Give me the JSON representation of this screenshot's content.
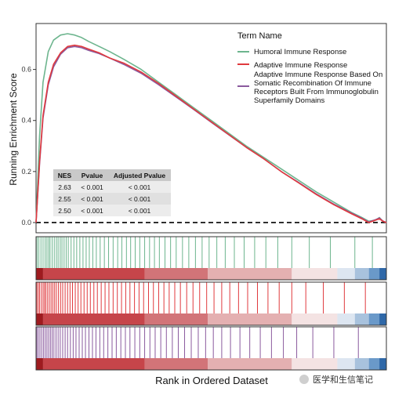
{
  "chart_data": {
    "type": "line",
    "ylabel": "Running Enrichment Score",
    "xlabel": "Rank in Ordered Dataset",
    "ylim": [
      -0.04,
      0.78
    ],
    "yticks": [
      "0.0",
      "0.2",
      "0.4",
      "0.6"
    ],
    "ytick_values": [
      0.0,
      0.2,
      0.4,
      0.6
    ],
    "legend_title": "Term Name",
    "legend_position": "top-right",
    "series": [
      {
        "name": "Humoral Immune Response",
        "color": "#6db58e",
        "x": [
          0,
          0.01,
          0.02,
          0.035,
          0.05,
          0.07,
          0.09,
          0.11,
          0.13,
          0.15,
          0.18,
          0.21,
          0.25,
          0.3,
          0.35,
          0.4,
          0.45,
          0.5,
          0.55,
          0.6,
          0.65,
          0.7,
          0.75,
          0.8,
          0.85,
          0.9,
          0.93,
          0.95,
          0.97,
          0.98,
          0.99,
          1.0
        ],
        "values": [
          0,
          0.34,
          0.55,
          0.67,
          0.715,
          0.735,
          0.74,
          0.735,
          0.725,
          0.71,
          0.69,
          0.67,
          0.64,
          0.6,
          0.55,
          0.5,
          0.45,
          0.4,
          0.35,
          0.3,
          0.255,
          0.21,
          0.165,
          0.12,
          0.08,
          0.04,
          0.02,
          0.005,
          0.01,
          0.02,
          0.005,
          0.0
        ]
      },
      {
        "name": "Adaptive Immune Response",
        "color": "#e03a3e",
        "x": [
          0,
          0.01,
          0.02,
          0.035,
          0.05,
          0.07,
          0.09,
          0.11,
          0.13,
          0.15,
          0.18,
          0.21,
          0.25,
          0.3,
          0.35,
          0.4,
          0.45,
          0.5,
          0.55,
          0.6,
          0.65,
          0.7,
          0.75,
          0.8,
          0.85,
          0.9,
          0.93,
          0.95,
          0.97,
          0.98,
          0.99,
          1.0
        ],
        "values": [
          0,
          0.24,
          0.42,
          0.55,
          0.62,
          0.665,
          0.69,
          0.695,
          0.69,
          0.68,
          0.665,
          0.645,
          0.625,
          0.59,
          0.545,
          0.495,
          0.445,
          0.395,
          0.345,
          0.295,
          0.25,
          0.2,
          0.155,
          0.11,
          0.07,
          0.035,
          0.015,
          0.0,
          0.01,
          0.015,
          0.005,
          0.0
        ]
      },
      {
        "name": "Adaptive Immune Response Based On Somatic Recombination Of Immune Receptors Built From Immunoglobulin Superfamily Domains",
        "color": "#8a5a9e",
        "x": [
          0,
          0.01,
          0.02,
          0.035,
          0.05,
          0.07,
          0.09,
          0.11,
          0.13,
          0.15,
          0.18,
          0.21,
          0.25,
          0.3,
          0.35,
          0.4,
          0.45,
          0.5,
          0.55,
          0.6,
          0.65,
          0.7,
          0.75,
          0.8,
          0.85,
          0.9,
          0.93,
          0.95,
          0.97,
          0.98,
          0.99,
          1.0
        ],
        "values": [
          0,
          0.23,
          0.41,
          0.54,
          0.61,
          0.66,
          0.685,
          0.69,
          0.685,
          0.675,
          0.662,
          0.645,
          0.62,
          0.585,
          0.54,
          0.492,
          0.443,
          0.393,
          0.344,
          0.295,
          0.25,
          0.2,
          0.157,
          0.112,
          0.072,
          0.037,
          0.017,
          0.002,
          0.012,
          0.018,
          0.006,
          0.0
        ]
      }
    ],
    "table": {
      "headers": [
        "NES",
        "Pvalue",
        "Adjusted Pvalue"
      ],
      "rows": [
        [
          "2.63",
          "< 0.001",
          "< 0.001"
        ],
        [
          "2.55",
          "< 0.001",
          "< 0.001"
        ],
        [
          "2.50",
          "< 0.001",
          "< 0.001"
        ]
      ]
    },
    "hit_positions": [
      [
        0.003,
        0.008,
        0.014,
        0.02,
        0.026,
        0.031,
        0.036,
        0.04,
        0.046,
        0.052,
        0.058,
        0.063,
        0.069,
        0.074,
        0.08,
        0.086,
        0.092,
        0.1,
        0.108,
        0.116,
        0.125,
        0.134,
        0.143,
        0.152,
        0.162,
        0.172,
        0.183,
        0.195,
        0.207,
        0.22,
        0.233,
        0.245,
        0.258,
        0.27,
        0.283,
        0.296,
        0.31,
        0.324,
        0.338,
        0.352,
        0.368,
        0.384,
        0.4,
        0.418,
        0.436,
        0.455,
        0.474,
        0.494,
        0.516,
        0.54,
        0.566,
        0.594,
        0.624,
        0.656,
        0.69,
        0.73,
        0.78,
        0.84,
        0.91,
        0.96
      ],
      [
        0.002,
        0.006,
        0.01,
        0.015,
        0.02,
        0.024,
        0.028,
        0.033,
        0.038,
        0.043,
        0.048,
        0.053,
        0.058,
        0.064,
        0.07,
        0.076,
        0.083,
        0.09,
        0.097,
        0.104,
        0.112,
        0.12,
        0.128,
        0.137,
        0.146,
        0.155,
        0.165,
        0.175,
        0.186,
        0.197,
        0.208,
        0.22,
        0.232,
        0.244,
        0.256,
        0.268,
        0.281,
        0.294,
        0.307,
        0.321,
        0.335,
        0.35,
        0.365,
        0.38,
        0.396,
        0.412,
        0.43,
        0.448,
        0.467,
        0.487,
        0.508,
        0.53,
        0.553,
        0.578,
        0.604,
        0.632,
        0.662,
        0.694,
        0.73,
        0.77,
        0.82,
        0.88,
        0.94
      ],
      [
        0.002,
        0.006,
        0.011,
        0.016,
        0.021,
        0.026,
        0.031,
        0.036,
        0.041,
        0.046,
        0.051,
        0.057,
        0.063,
        0.069,
        0.076,
        0.083,
        0.09,
        0.098,
        0.106,
        0.114,
        0.123,
        0.132,
        0.141,
        0.151,
        0.161,
        0.171,
        0.182,
        0.193,
        0.205,
        0.217,
        0.229,
        0.242,
        0.255,
        0.268,
        0.282,
        0.296,
        0.31,
        0.325,
        0.34,
        0.356,
        0.372,
        0.389,
        0.406,
        0.424,
        0.443,
        0.463,
        0.484,
        0.506,
        0.53,
        0.555,
        0.582,
        0.61,
        0.64,
        0.672,
        0.706,
        0.744,
        0.79,
        0.85,
        0.92
      ]
    ],
    "rank_gradient": [
      {
        "from": 0.0,
        "to": 0.02,
        "color": "#9e1b1f"
      },
      {
        "from": 0.02,
        "to": 0.31,
        "color": "#c6454a"
      },
      {
        "from": 0.31,
        "to": 0.49,
        "color": "#d27478"
      },
      {
        "from": 0.49,
        "to": 0.73,
        "color": "#e4b0b1"
      },
      {
        "from": 0.73,
        "to": 0.86,
        "color": "#f4e3e3"
      },
      {
        "from": 0.86,
        "to": 0.91,
        "color": "#dde6f1"
      },
      {
        "from": 0.91,
        "to": 0.95,
        "color": "#a8c2dd"
      },
      {
        "from": 0.95,
        "to": 0.98,
        "color": "#6a99c9"
      },
      {
        "from": 0.98,
        "to": 1.0,
        "color": "#2f68a8"
      }
    ],
    "watermark": "医学和生信笔记"
  }
}
